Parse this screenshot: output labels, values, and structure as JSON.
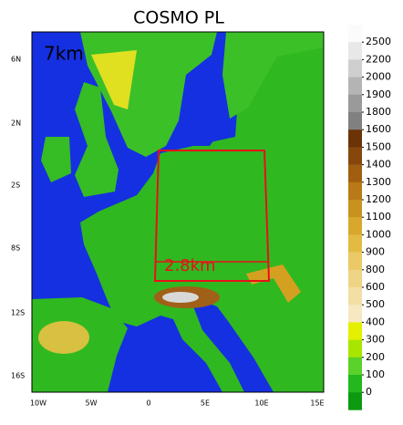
{
  "title": "COSMO PL",
  "map": {
    "annotations": [
      "7km",
      "2.8km"
    ],
    "lat_labels": [
      "6N",
      "2N",
      "2S",
      "8S",
      "12S",
      "16S"
    ],
    "lon_labels": [
      "10W",
      "5W",
      "0",
      "5E",
      "10E",
      "15E"
    ]
  },
  "colorbar": {
    "levels": [
      2500,
      2200,
      2000,
      1900,
      1800,
      1600,
      1500,
      1400,
      1300,
      1200,
      1100,
      1000,
      900,
      800,
      600,
      500,
      400,
      300,
      200,
      100,
      0
    ],
    "colors": [
      "#fbfbfb",
      "#e8e8e8",
      "#cfcfcf",
      "#b4b4b4",
      "#9a9a9a",
      "#808080",
      "#6b3308",
      "#87470c",
      "#a05e10",
      "#b87a16",
      "#c99220",
      "#d8a82c",
      "#e3bb44",
      "#ebc966",
      "#f0d486",
      "#f3dea4",
      "#f6e8c0",
      "#e4f000",
      "#a8e600",
      "#5ad22a",
      "#22b81e",
      "#0c9a10"
    ]
  }
}
